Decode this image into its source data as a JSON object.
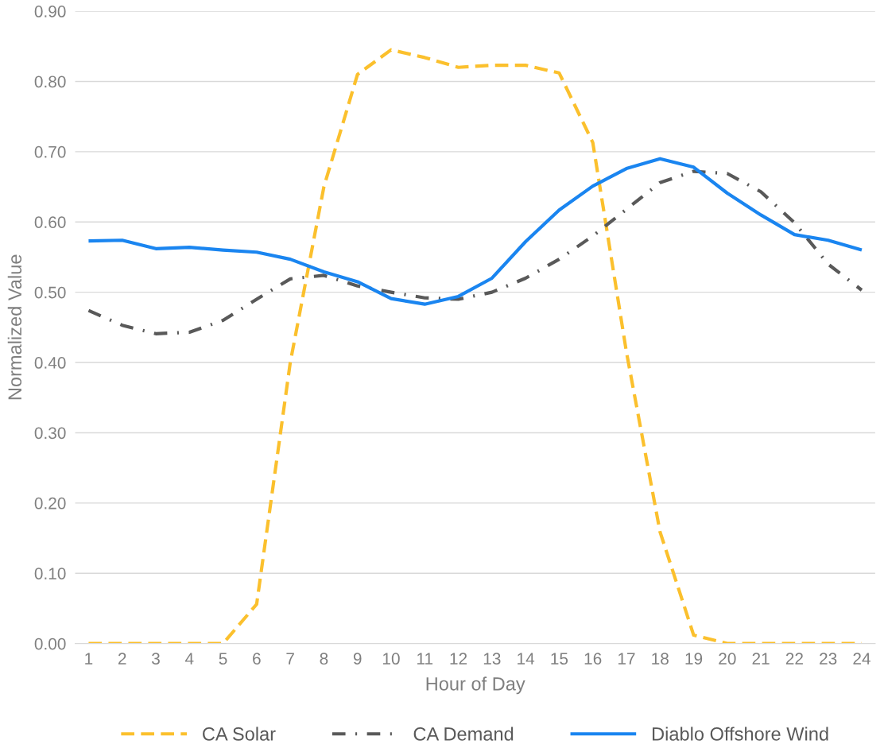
{
  "chart_data": {
    "type": "line",
    "xlabel": "Hour of Day",
    "ylabel": "Normalized Value",
    "categories": [
      "1",
      "2",
      "3",
      "4",
      "5",
      "6",
      "7",
      "8",
      "9",
      "10",
      "11",
      "12",
      "13",
      "14",
      "15",
      "16",
      "17",
      "18",
      "19",
      "20",
      "21",
      "22",
      "23",
      "24"
    ],
    "series": [
      {
        "name": "CA Solar",
        "color": "#fbc02d",
        "line_style": "dashed",
        "values": [
          0,
          0,
          0,
          0,
          0,
          0.056,
          0.4,
          0.65,
          0.81,
          0.845,
          0.834,
          0.82,
          0.823,
          0.823,
          0.812,
          0.713,
          0.415,
          0.159,
          0.012,
          0,
          0,
          0,
          0,
          0
        ]
      },
      {
        "name": "CA Demand",
        "color": "#595959",
        "line_style": "dashdot",
        "values": [
          0.474,
          0.453,
          0.441,
          0.443,
          0.46,
          0.49,
          0.519,
          0.524,
          0.509,
          0.5,
          0.492,
          0.49,
          0.5,
          0.52,
          0.547,
          0.58,
          0.618,
          0.656,
          0.672,
          0.669,
          0.643,
          0.599,
          0.54,
          0.503
        ]
      },
      {
        "name": "Diablo Offshore Wind",
        "color": "#1a85f0",
        "line_style": "solid",
        "values": [
          0.573,
          0.574,
          0.562,
          0.564,
          0.56,
          0.557,
          0.547,
          0.529,
          0.515,
          0.491,
          0.483,
          0.494,
          0.52,
          0.572,
          0.617,
          0.651,
          0.676,
          0.69,
          0.678,
          0.641,
          0.61,
          0.582,
          0.574,
          0.56
        ]
      }
    ],
    "ylim": [
      0,
      0.9
    ],
    "yticks": [
      {
        "value": 0,
        "label": "0.00"
      },
      {
        "value": 0.1,
        "label": "0.10"
      },
      {
        "value": 0.2,
        "label": "0.20"
      },
      {
        "value": 0.3,
        "label": "0.30"
      },
      {
        "value": 0.4,
        "label": "0.40"
      },
      {
        "value": 0.5,
        "label": "0.50"
      },
      {
        "value": 0.6,
        "label": "0.60"
      },
      {
        "value": 0.7,
        "label": "0.70"
      },
      {
        "value": 0.8,
        "label": "0.80"
      },
      {
        "value": 0.9,
        "label": "0.90"
      }
    ],
    "grid": "y",
    "legend": "bottom",
    "marker": "none"
  }
}
